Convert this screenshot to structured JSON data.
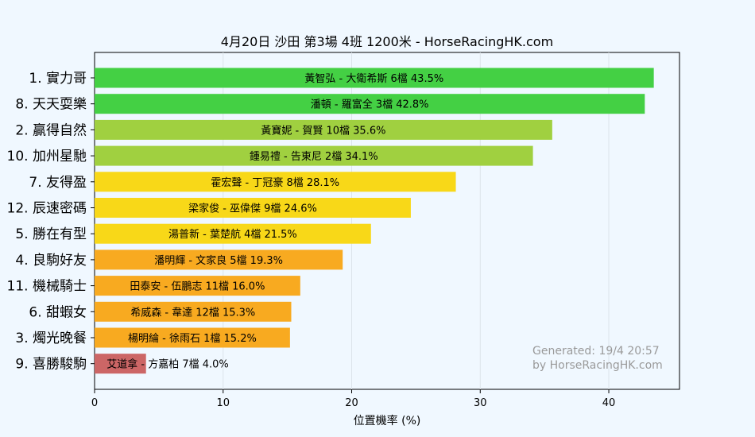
{
  "chart_data": {
    "type": "bar",
    "orientation": "horizontal",
    "title": "4月20日  沙田  第3場  4班  1200米 - HorseRacingHK.com",
    "xlabel": "位置機率 (%)",
    "ylabel": "",
    "xlim": [
      0,
      45.5
    ],
    "xticks": [
      0,
      10,
      20,
      30,
      40
    ],
    "grid": "vertical",
    "categories": [
      "1. 實力哥",
      "8. 天天耍樂",
      "2. 贏得自然",
      "10. 加州星馳",
      "7. 友得盈",
      "12. 辰速密碼",
      "5. 勝在有型",
      "4. 良駒好友",
      "11. 機械騎士",
      "6. 甜蝦女",
      "3. 燭光晚餐",
      "9. 喜勝駿駒"
    ],
    "values": [
      43.5,
      42.8,
      35.6,
      34.1,
      28.1,
      24.6,
      21.5,
      19.3,
      16.0,
      15.3,
      15.2,
      4.0
    ],
    "bar_labels": [
      "黃智弘 - 大衛希斯 6檔  43.5%",
      "潘頓 - 羅富全 3檔  42.8%",
      "黃寶妮 - 賀賢 10檔  35.6%",
      "鍾易禮 - 告東尼 2檔  34.1%",
      "霍宏聲 - 丁冠豪 8檔  28.1%",
      "梁家俊 - 巫偉傑 9檔  24.6%",
      "湯普新 - 葉楚航 4檔  21.5%",
      "潘明輝 - 文家良 5檔  19.3%",
      "田泰安 - 伍鵬志 11檔  16.0%",
      "希威森 - 韋達 12檔  15.3%",
      "楊明綸 - 徐雨石 1檔  15.2%",
      "艾道拿 - 方嘉柏 7檔  4.0%"
    ],
    "colors": [
      "#44d044",
      "#44d044",
      "#a0d040",
      "#a0d040",
      "#f8d818",
      "#f8d818",
      "#f8d818",
      "#f8aa20",
      "#f8aa20",
      "#f8aa20",
      "#f8aa20",
      "#cc6666"
    ],
    "annotations": [
      "Generated: 19/4 20:57",
      "by HorseRacingHK.com"
    ]
  }
}
